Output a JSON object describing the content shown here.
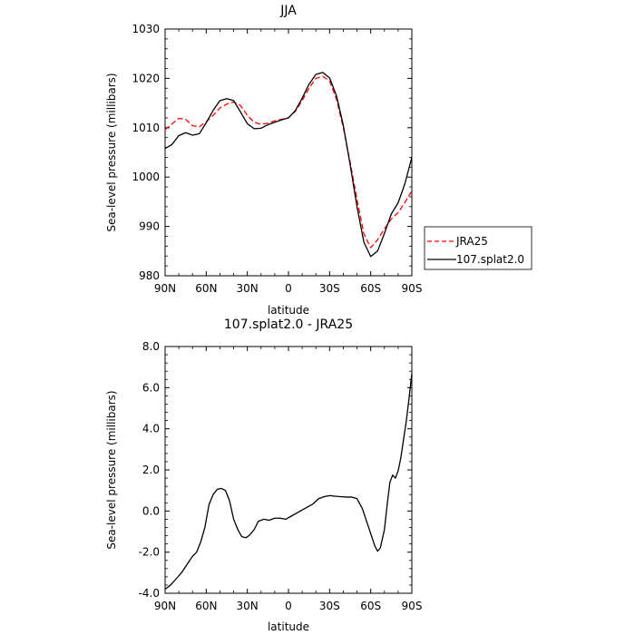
{
  "chart_data": [
    {
      "type": "line",
      "title": "JJA",
      "xlabel": "latitude",
      "ylabel": "Sea-level pressure (millibars)",
      "xlim": [
        90,
        -90
      ],
      "ylim": [
        980,
        1030
      ],
      "x_ticks": [
        {
          "value": 90,
          "label": "90N"
        },
        {
          "value": 60,
          "label": "60N"
        },
        {
          "value": 30,
          "label": "30N"
        },
        {
          "value": 0,
          "label": "0"
        },
        {
          "value": -30,
          "label": "30S"
        },
        {
          "value": -60,
          "label": "60S"
        },
        {
          "value": -90,
          "label": "90S"
        }
      ],
      "y_ticks": [
        {
          "value": 980,
          "label": "980"
        },
        {
          "value": 990,
          "label": "990"
        },
        {
          "value": 1000,
          "label": "1000"
        },
        {
          "value": 1010,
          "label": "1010"
        },
        {
          "value": 1020,
          "label": "1020"
        },
        {
          "value": 1030,
          "label": "1030"
        }
      ],
      "legend": {
        "placement": "outside-right"
      },
      "series": [
        {
          "name": "JRA25",
          "color": "#ff0000",
          "dash": true,
          "x": [
            90,
            85,
            80,
            75,
            70,
            65,
            60,
            55,
            50,
            45,
            40,
            35,
            30,
            25,
            20,
            15,
            10,
            5,
            0,
            -5,
            -10,
            -15,
            -20,
            -25,
            -30,
            -35,
            -40,
            -45,
            -50,
            -55,
            -60,
            -65,
            -70,
            -75,
            -80,
            -85,
            -90
          ],
          "values": [
            1009.6,
            1010.8,
            1011.9,
            1011.7,
            1010.4,
            1010.2,
            1011.2,
            1012.5,
            1014.0,
            1014.8,
            1015.2,
            1014.5,
            1012.5,
            1011.1,
            1010.7,
            1010.9,
            1011.4,
            1011.7,
            1012.0,
            1013.3,
            1015.5,
            1018.0,
            1020.0,
            1020.4,
            1019.5,
            1015.8,
            1010.0,
            1003.0,
            995.5,
            988.5,
            985.7,
            987.3,
            989.5,
            991.5,
            992.8,
            994.9,
            997.2
          ]
        },
        {
          "name": "107.splat2.0",
          "color": "#000000",
          "dash": false,
          "x": [
            90,
            85,
            80,
            75,
            70,
            65,
            60,
            55,
            50,
            45,
            40,
            35,
            30,
            25,
            20,
            15,
            10,
            5,
            0,
            -5,
            -10,
            -15,
            -20,
            -25,
            -30,
            -35,
            -40,
            -45,
            -50,
            -55,
            -60,
            -65,
            -70,
            -75,
            -80,
            -85,
            -90
          ],
          "values": [
            1005.8,
            1006.6,
            1008.4,
            1009.0,
            1008.5,
            1008.8,
            1011.0,
            1013.5,
            1015.5,
            1015.9,
            1015.5,
            1013.2,
            1010.8,
            1009.8,
            1009.9,
            1010.6,
            1011.1,
            1011.6,
            1012.0,
            1013.5,
            1016.0,
            1018.8,
            1020.8,
            1021.2,
            1020.1,
            1016.5,
            1010.5,
            1002.5,
            994.0,
            986.8,
            983.9,
            985.0,
            988.6,
            992.5,
            994.8,
            998.7,
            1004.0
          ]
        }
      ]
    },
    {
      "type": "line",
      "title": "107.splat2.0 - JRA25",
      "xlabel": "latitude",
      "ylabel": "Sea-level pressure (millibars)",
      "xlim": [
        90,
        -90
      ],
      "ylim": [
        -4.0,
        8.0
      ],
      "x_ticks": [
        {
          "value": 90,
          "label": "90N"
        },
        {
          "value": 60,
          "label": "60N"
        },
        {
          "value": 30,
          "label": "30N"
        },
        {
          "value": 0,
          "label": "0"
        },
        {
          "value": -30,
          "label": "30S"
        },
        {
          "value": -60,
          "label": "60S"
        },
        {
          "value": -90,
          "label": "90S"
        }
      ],
      "y_ticks": [
        {
          "value": -4,
          "label": "-4.0"
        },
        {
          "value": -2,
          "label": "-2.0"
        },
        {
          "value": 0,
          "label": "0.0"
        },
        {
          "value": 2,
          "label": "2.0"
        },
        {
          "value": 4,
          "label": "4.0"
        },
        {
          "value": 6,
          "label": "6.0"
        },
        {
          "value": 8,
          "label": "8.0"
        }
      ],
      "series": [
        {
          "color": "#000000",
          "dash": false,
          "x": [
            90,
            86,
            82,
            78,
            74,
            70,
            67,
            64,
            61,
            58,
            55,
            52,
            49,
            46,
            43,
            40,
            37,
            34,
            31,
            28,
            25,
            22,
            18,
            14,
            10,
            6,
            2,
            -2,
            -6,
            -10,
            -14,
            -18,
            -22,
            -26,
            -30,
            -34,
            -38,
            -42,
            -46,
            -50,
            -54,
            -58,
            -61,
            -63,
            -65,
            -67,
            -70,
            -72,
            -74,
            -76,
            -78,
            -80,
            -82,
            -84,
            -86,
            -88,
            -90
          ],
          "values": [
            -3.8,
            -3.6,
            -3.3,
            -3.0,
            -2.6,
            -2.2,
            -2.0,
            -1.5,
            -0.8,
            0.3,
            0.8,
            1.05,
            1.1,
            1.0,
            0.5,
            -0.4,
            -0.9,
            -1.25,
            -1.3,
            -1.15,
            -0.9,
            -0.5,
            -0.4,
            -0.45,
            -0.35,
            -0.35,
            -0.4,
            -0.25,
            -0.1,
            0.05,
            0.2,
            0.35,
            0.6,
            0.7,
            0.75,
            0.72,
            0.7,
            0.68,
            0.68,
            0.6,
            0.1,
            -0.7,
            -1.3,
            -1.7,
            -1.95,
            -1.8,
            -0.9,
            0.3,
            1.4,
            1.75,
            1.6,
            1.95,
            2.6,
            3.5,
            4.4,
            5.5,
            6.7
          ]
        }
      ]
    }
  ]
}
